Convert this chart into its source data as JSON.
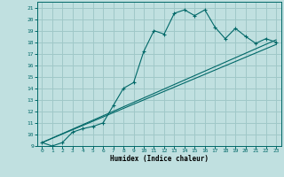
{
  "title": "",
  "xlabel": "Humidex (Indice chaleur)",
  "background_color": "#c0e0e0",
  "grid_color": "#a0c8c8",
  "line_color": "#006868",
  "xlim": [
    -0.5,
    23.5
  ],
  "ylim": [
    9,
    21.5
  ],
  "xticks": [
    0,
    1,
    2,
    3,
    4,
    5,
    6,
    7,
    8,
    9,
    10,
    11,
    12,
    13,
    14,
    15,
    16,
    17,
    18,
    19,
    20,
    21,
    22,
    23
  ],
  "yticks": [
    9,
    10,
    11,
    12,
    13,
    14,
    15,
    16,
    17,
    18,
    19,
    20,
    21
  ],
  "line1_x": [
    0,
    1,
    2,
    3,
    4,
    5,
    6,
    7,
    8,
    9,
    10,
    11,
    12,
    13,
    14,
    15,
    16,
    17,
    18,
    19,
    20,
    21,
    22,
    23
  ],
  "line1_y": [
    9.3,
    9.0,
    9.3,
    10.2,
    10.5,
    10.7,
    11.0,
    12.5,
    14.0,
    14.5,
    17.2,
    19.0,
    18.7,
    20.5,
    20.8,
    20.3,
    20.8,
    19.3,
    18.3,
    19.2,
    18.5,
    17.9,
    18.3,
    18.0
  ],
  "line2_x": [
    0,
    23
  ],
  "line2_y": [
    9.3,
    18.2
  ],
  "line3_x": [
    0,
    23
  ],
  "line3_y": [
    9.3,
    17.8
  ]
}
